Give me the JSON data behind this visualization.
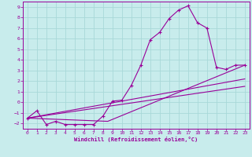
{
  "xlabel": "Windchill (Refroidissement éolien,°C)",
  "background_color": "#c8ecec",
  "grid_color": "#a8d8d8",
  "line_color": "#990099",
  "xlim": [
    -0.5,
    23.5
  ],
  "ylim": [
    -2.5,
    9.5
  ],
  "xticks": [
    0,
    1,
    2,
    3,
    4,
    5,
    6,
    7,
    8,
    9,
    10,
    11,
    12,
    13,
    14,
    15,
    16,
    17,
    18,
    19,
    20,
    21,
    22,
    23
  ],
  "yticks": [
    -2,
    -1,
    0,
    1,
    2,
    3,
    4,
    5,
    6,
    7,
    8,
    9
  ],
  "main_x": [
    0,
    1,
    2,
    3,
    4,
    5,
    6,
    7,
    8,
    9,
    10,
    11,
    12,
    13,
    14,
    15,
    16,
    17,
    18,
    19,
    20,
    21,
    22,
    23
  ],
  "main_y": [
    -1.5,
    -0.8,
    -2.1,
    -1.8,
    -2.1,
    -2.1,
    -2.1,
    -2.1,
    -1.3,
    0.1,
    0.2,
    1.6,
    3.5,
    5.9,
    6.6,
    7.9,
    8.7,
    9.1,
    7.5,
    7.0,
    3.3,
    3.1,
    3.5,
    3.5
  ],
  "line2_x": [
    0,
    23
  ],
  "line2_y": [
    -1.5,
    2.2
  ],
  "line3_x": [
    0,
    23
  ],
  "line3_y": [
    -1.5,
    1.5
  ],
  "line4_x": [
    0,
    8.5,
    23
  ],
  "line4_y": [
    -1.5,
    -1.8,
    3.5
  ],
  "figsize": [
    3.2,
    2.0
  ],
  "dpi": 100,
  "tick_fontsize": 4.5,
  "xlabel_fontsize": 5.0
}
